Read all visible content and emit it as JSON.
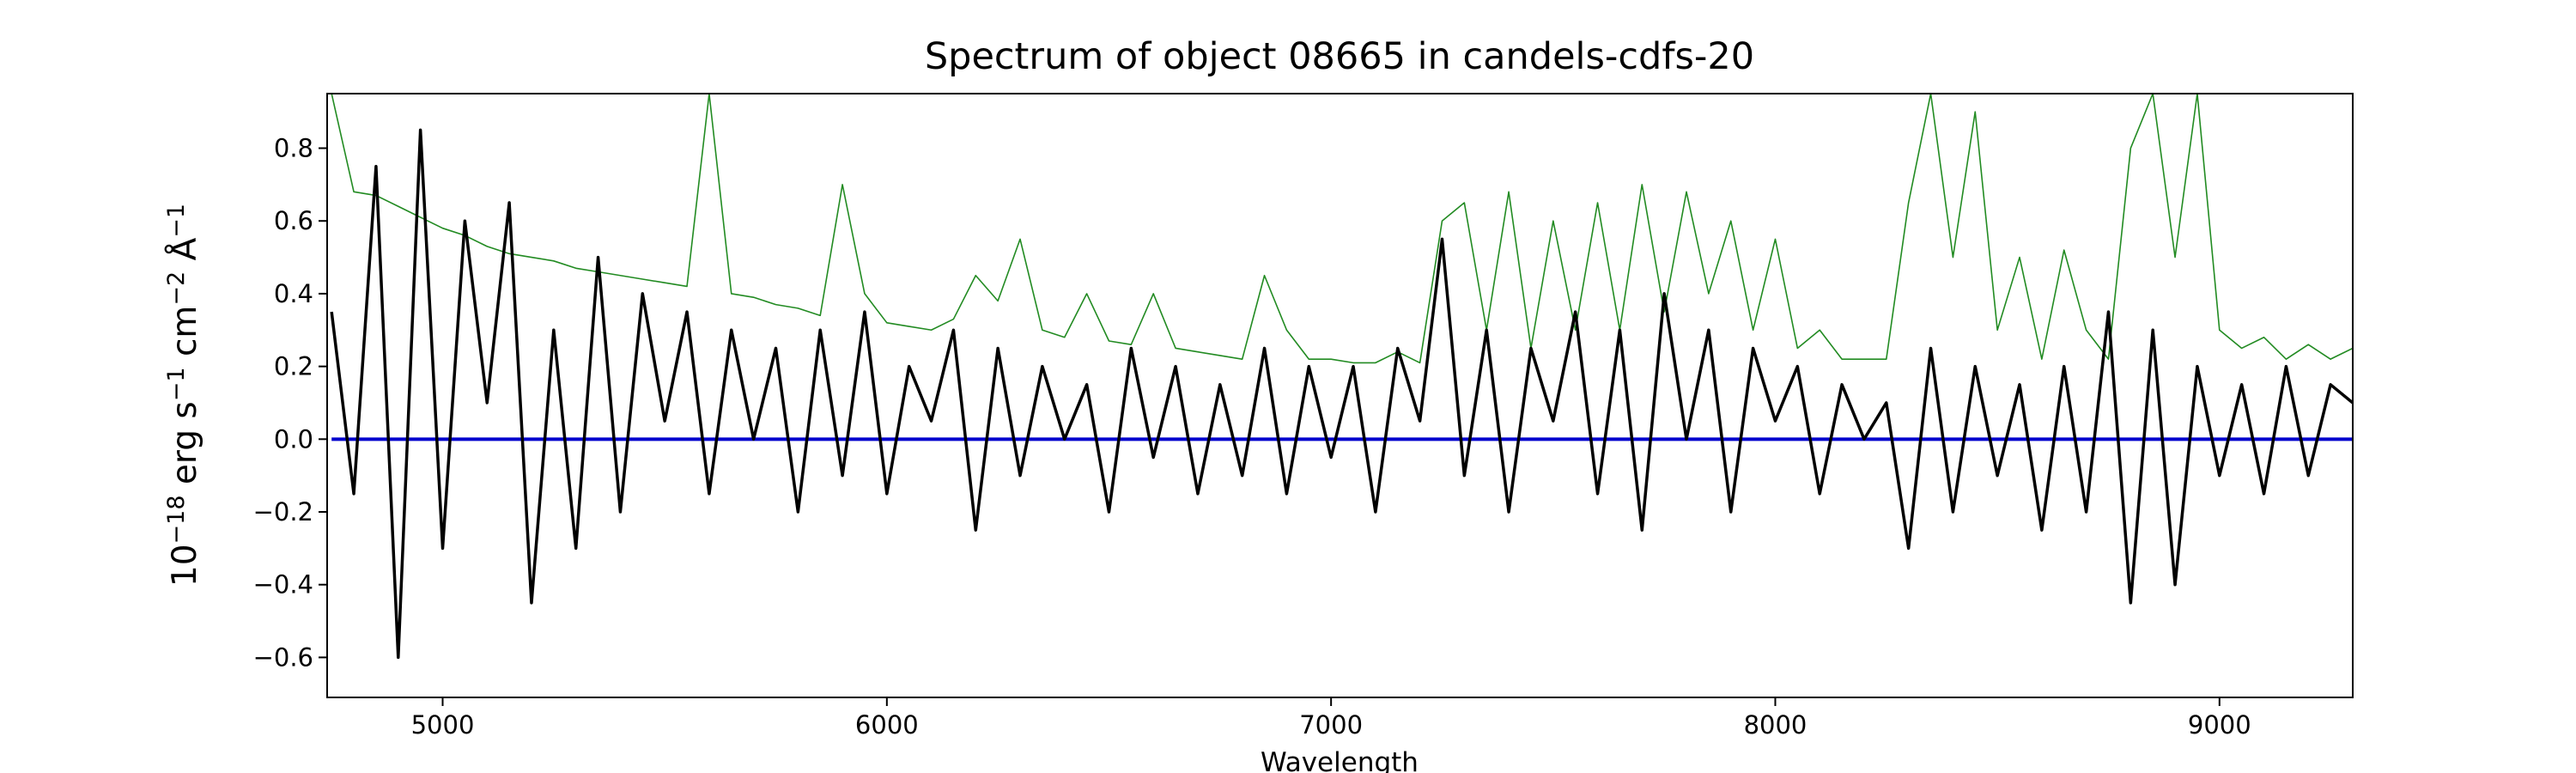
{
  "chart_data": {
    "type": "line",
    "title": "Spectrum of object 08665 in candels-cdfs-20",
    "xlabel": "Wavelength",
    "ylabel_parts": [
      "10",
      "−18",
      " erg s",
      "−1",
      " cm",
      "−2",
      " Å",
      "−1"
    ],
    "xlim": [
      4740,
      9300
    ],
    "ylim": [
      -0.71,
      0.95
    ],
    "xticks": [
      5000,
      6000,
      7000,
      8000,
      9000
    ],
    "yticks": [
      {
        "value": -0.6,
        "label": "−0.6"
      },
      {
        "value": -0.4,
        "label": "−0.4"
      },
      {
        "value": -0.2,
        "label": "−0.2"
      },
      {
        "value": 0,
        "label": "0.0"
      },
      0.2,
      0.4,
      0.6,
      0.8
    ],
    "x": [
      4750,
      4800,
      4850,
      4900,
      4950,
      5000,
      5050,
      5100,
      5150,
      5200,
      5250,
      5300,
      5350,
      5400,
      5450,
      5500,
      5550,
      5600,
      5650,
      5700,
      5750,
      5800,
      5850,
      5900,
      5950,
      6000,
      6050,
      6100,
      6150,
      6200,
      6250,
      6300,
      6350,
      6400,
      6450,
      6500,
      6550,
      6600,
      6650,
      6700,
      6750,
      6800,
      6850,
      6900,
      6950,
      7000,
      7050,
      7100,
      7150,
      7200,
      7250,
      7300,
      7350,
      7400,
      7450,
      7500,
      7550,
      7600,
      7650,
      7700,
      7750,
      7800,
      7850,
      7900,
      7950,
      8000,
      8050,
      8100,
      8150,
      8200,
      8250,
      8300,
      8350,
      8400,
      8450,
      8500,
      8550,
      8600,
      8650,
      8700,
      8750,
      8800,
      8850,
      8900,
      8950,
      9000,
      9050,
      9100,
      9150,
      9200,
      9250,
      9300
    ],
    "series": [
      {
        "color": "#228b22",
        "width": 1.6,
        "values": [
          0.95,
          0.68,
          0.67,
          0.64,
          0.61,
          0.58,
          0.56,
          0.53,
          0.51,
          0.5,
          0.49,
          0.47,
          0.46,
          0.45,
          0.44,
          0.43,
          0.42,
          0.95,
          0.4,
          0.39,
          0.37,
          0.36,
          0.34,
          0.7,
          0.4,
          0.32,
          0.31,
          0.3,
          0.33,
          0.45,
          0.38,
          0.55,
          0.3,
          0.28,
          0.4,
          0.27,
          0.26,
          0.4,
          0.25,
          0.24,
          0.23,
          0.22,
          0.45,
          0.3,
          0.22,
          0.22,
          0.21,
          0.21,
          0.24,
          0.21,
          0.6,
          0.65,
          0.3,
          0.68,
          0.25,
          0.6,
          0.3,
          0.65,
          0.3,
          0.7,
          0.35,
          0.68,
          0.4,
          0.6,
          0.3,
          0.55,
          0.25,
          0.3,
          0.22,
          0.22,
          0.22,
          0.65,
          0.95,
          0.5,
          0.9,
          0.3,
          0.5,
          0.22,
          0.52,
          0.3,
          0.22,
          0.8,
          0.95,
          0.5,
          0.95,
          0.3,
          0.25,
          0.28,
          0.22,
          0.26,
          0.22,
          0.25
        ]
      },
      {
        "color": "#0000cd",
        "width": 4,
        "values": [
          0,
          0,
          0,
          0,
          0,
          0,
          0,
          0,
          0,
          0,
          0,
          0,
          0,
          0,
          0,
          0,
          0,
          0,
          0,
          0,
          0,
          0,
          0,
          0,
          0,
          0,
          0,
          0,
          0,
          0,
          0,
          0,
          0,
          0,
          0,
          0,
          0,
          0,
          0,
          0,
          0,
          0,
          0,
          0,
          0,
          0,
          0,
          0,
          0,
          0,
          0,
          0,
          0,
          0,
          0,
          0,
          0,
          0,
          0,
          0,
          0,
          0,
          0,
          0,
          0,
          0,
          0,
          0,
          0,
          0,
          0,
          0,
          0,
          0,
          0,
          0,
          0,
          0,
          0,
          0,
          0,
          0,
          0,
          0,
          0,
          0,
          0,
          0,
          0,
          0,
          0,
          0
        ]
      },
      {
        "color": "#000000",
        "width": 3.5,
        "values": [
          0.35,
          -0.15,
          0.75,
          -0.6,
          0.85,
          -0.3,
          0.6,
          0.1,
          0.65,
          -0.45,
          0.3,
          -0.3,
          0.5,
          -0.2,
          0.4,
          0.05,
          0.35,
          -0.15,
          0.3,
          0,
          0.25,
          -0.2,
          0.3,
          -0.1,
          0.35,
          -0.15,
          0.2,
          0.05,
          0.3,
          -0.25,
          0.25,
          -0.1,
          0.2,
          0,
          0.15,
          -0.2,
          0.25,
          -0.05,
          0.2,
          -0.15,
          0.15,
          -0.1,
          0.25,
          -0.15,
          0.2,
          -0.05,
          0.2,
          -0.2,
          0.25,
          0.05,
          0.55,
          -0.1,
          0.3,
          -0.2,
          0.25,
          0.05,
          0.35,
          -0.15,
          0.3,
          -0.25,
          0.4,
          0,
          0.3,
          -0.2,
          0.25,
          0.05,
          0.2,
          -0.15,
          0.15,
          0,
          0.1,
          -0.3,
          0.25,
          -0.2,
          0.2,
          -0.1,
          0.15,
          -0.25,
          0.2,
          -0.2,
          0.35,
          -0.45,
          0.3,
          -0.4,
          0.2,
          -0.1,
          0.15,
          -0.15,
          0.2,
          -0.1,
          0.15,
          0.1
        ]
      }
    ]
  }
}
